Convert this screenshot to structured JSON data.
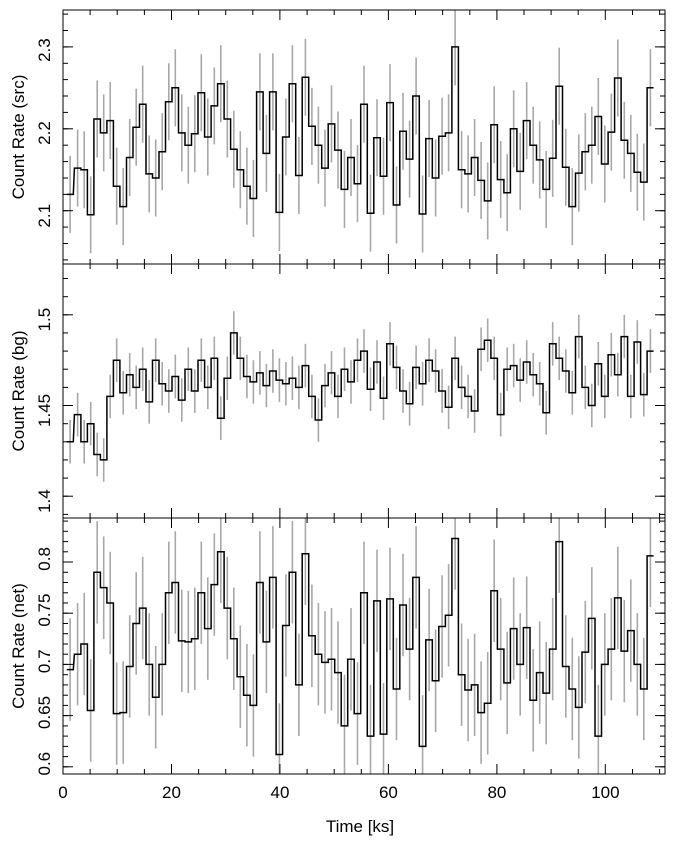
{
  "chart_data": [
    {
      "type": "line",
      "style": "step",
      "ylabel": "Count Rate (src)",
      "ylim": [
        2.035,
        2.345
      ],
      "ytick_labels": [
        "2.1",
        "2.2",
        "2.3"
      ],
      "xlim": [
        0,
        111
      ],
      "x": [
        1.3,
        2.7,
        3.9,
        5.1,
        6.3,
        7.5,
        8.7,
        9.9,
        11.1,
        12.3,
        13.5,
        14.7,
        15.9,
        17.1,
        18.3,
        19.5,
        20.7,
        21.9,
        23.1,
        24.3,
        25.5,
        26.7,
        27.9,
        29.1,
        30.3,
        31.5,
        32.7,
        33.9,
        35.1,
        36.3,
        37.5,
        38.7,
        39.9,
        41.1,
        42.3,
        43.5,
        44.7,
        45.9,
        47.1,
        48.3,
        49.5,
        50.7,
        51.9,
        53.1,
        54.3,
        55.5,
        56.7,
        57.9,
        59.1,
        60.3,
        61.5,
        62.7,
        63.9,
        65.1,
        66.3,
        67.5,
        68.7,
        69.9,
        71.1,
        72.3,
        73.5,
        74.7,
        75.9,
        77.1,
        78.3,
        79.5,
        80.7,
        81.9,
        83.1,
        84.3,
        85.5,
        86.7,
        87.9,
        89.1,
        90.3,
        91.5,
        92.7,
        93.9,
        95.1,
        96.3,
        97.5,
        98.7,
        99.9,
        101.1,
        102.3,
        103.5,
        104.7,
        105.9,
        107.1,
        108.3
      ],
      "y": [
        2.12,
        2.152,
        2.15,
        2.095,
        2.212,
        2.195,
        2.21,
        2.13,
        2.105,
        2.165,
        2.202,
        2.23,
        2.145,
        2.14,
        2.172,
        2.233,
        2.25,
        2.195,
        2.18,
        2.194,
        2.244,
        2.19,
        2.228,
        2.255,
        2.212,
        2.175,
        2.15,
        2.13,
        2.115,
        2.245,
        2.17,
        2.245,
        2.098,
        2.19,
        2.255,
        2.143,
        2.263,
        2.203,
        2.18,
        2.152,
        2.206,
        2.174,
        2.126,
        2.165,
        2.133,
        2.23,
        2.097,
        2.189,
        2.142,
        2.232,
        2.107,
        2.197,
        2.163,
        2.24,
        2.096,
        2.188,
        2.14,
        2.191,
        2.195,
        2.3,
        2.15,
        2.145,
        2.165,
        2.137,
        2.112,
        2.205,
        2.138,
        2.122,
        2.2,
        2.148,
        2.21,
        2.18,
        2.162,
        2.126,
        2.164,
        2.252,
        2.153,
        2.105,
        2.146,
        2.172,
        2.18,
        2.215,
        2.157,
        2.196,
        2.262,
        2.186,
        2.17,
        2.147,
        2.135,
        2.25
      ],
      "err": [
        0.047,
        0.047,
        0.047,
        0.047,
        0.047,
        0.047,
        0.047,
        0.047,
        0.047,
        0.047,
        0.047,
        0.047,
        0.047,
        0.047,
        0.047,
        0.047,
        0.047,
        0.047,
        0.047,
        0.047,
        0.047,
        0.047,
        0.047,
        0.047,
        0.047,
        0.047,
        0.047,
        0.047,
        0.047,
        0.047,
        0.047,
        0.047,
        0.047,
        0.047,
        0.047,
        0.047,
        0.047,
        0.047,
        0.047,
        0.047,
        0.047,
        0.047,
        0.047,
        0.047,
        0.047,
        0.047,
        0.047,
        0.047,
        0.047,
        0.047,
        0.047,
        0.047,
        0.047,
        0.047,
        0.047,
        0.047,
        0.047,
        0.047,
        0.047,
        0.047,
        0.047,
        0.047,
        0.047,
        0.047,
        0.047,
        0.047,
        0.047,
        0.047,
        0.047,
        0.047,
        0.047,
        0.047,
        0.047,
        0.047,
        0.047,
        0.047,
        0.047,
        0.047,
        0.047,
        0.047,
        0.047,
        0.047,
        0.047,
        0.047,
        0.047,
        0.047,
        0.047,
        0.047,
        0.047,
        0.047
      ]
    },
    {
      "type": "line",
      "style": "step",
      "ylabel": "Count Rate (bg)",
      "ylim": [
        1.388,
        1.528
      ],
      "ytick_labels": [
        "1.4",
        "1.45",
        "1.5"
      ],
      "xlim": [
        0,
        111
      ],
      "x": [
        1.3,
        2.7,
        3.9,
        5.1,
        6.3,
        7.5,
        8.7,
        9.9,
        11.1,
        12.3,
        13.5,
        14.7,
        15.9,
        17.1,
        18.3,
        19.5,
        20.7,
        21.9,
        23.1,
        24.3,
        25.5,
        26.7,
        27.9,
        29.1,
        30.3,
        31.5,
        32.7,
        33.9,
        35.1,
        36.3,
        37.5,
        38.7,
        39.9,
        41.1,
        42.3,
        43.5,
        44.7,
        45.9,
        47.1,
        48.3,
        49.5,
        50.7,
        51.9,
        53.1,
        54.3,
        55.5,
        56.7,
        57.9,
        59.1,
        60.3,
        61.5,
        62.7,
        63.9,
        65.1,
        66.3,
        67.5,
        68.7,
        69.9,
        71.1,
        72.3,
        73.5,
        74.7,
        75.9,
        77.1,
        78.3,
        79.5,
        80.7,
        81.9,
        83.1,
        84.3,
        85.5,
        86.7,
        87.9,
        89.1,
        90.3,
        91.5,
        92.7,
        93.9,
        95.1,
        96.3,
        97.5,
        98.7,
        99.9,
        101.1,
        102.3,
        103.5,
        104.7,
        105.9,
        107.1,
        108.3
      ],
      "y": [
        1.43,
        1.445,
        1.43,
        1.44,
        1.423,
        1.42,
        1.455,
        1.475,
        1.457,
        1.467,
        1.46,
        1.47,
        1.452,
        1.475,
        1.462,
        1.458,
        1.466,
        1.453,
        1.47,
        1.458,
        1.475,
        1.46,
        1.476,
        1.443,
        1.465,
        1.49,
        1.476,
        1.466,
        1.463,
        1.468,
        1.461,
        1.469,
        1.464,
        1.462,
        1.465,
        1.46,
        1.472,
        1.455,
        1.442,
        1.461,
        1.468,
        1.455,
        1.47,
        1.463,
        1.475,
        1.48,
        1.459,
        1.474,
        1.454,
        1.484,
        1.471,
        1.458,
        1.451,
        1.471,
        1.462,
        1.475,
        1.469,
        1.458,
        1.449,
        1.476,
        1.46,
        1.455,
        1.447,
        1.481,
        1.486,
        1.476,
        1.445,
        1.47,
        1.472,
        1.464,
        1.474,
        1.467,
        1.462,
        1.446,
        1.484,
        1.476,
        1.469,
        1.457,
        1.488,
        1.46,
        1.45,
        1.473,
        1.455,
        1.478,
        1.467,
        1.488,
        1.455,
        1.485,
        1.456,
        1.48
      ],
      "err": [
        0.012,
        0.012,
        0.012,
        0.012,
        0.012,
        0.012,
        0.012,
        0.012,
        0.012,
        0.012,
        0.012,
        0.012,
        0.012,
        0.012,
        0.012,
        0.012,
        0.012,
        0.012,
        0.012,
        0.012,
        0.012,
        0.012,
        0.012,
        0.012,
        0.012,
        0.012,
        0.012,
        0.012,
        0.012,
        0.012,
        0.012,
        0.012,
        0.012,
        0.012,
        0.012,
        0.012,
        0.012,
        0.012,
        0.012,
        0.012,
        0.012,
        0.012,
        0.012,
        0.012,
        0.012,
        0.012,
        0.012,
        0.012,
        0.012,
        0.012,
        0.012,
        0.012,
        0.012,
        0.012,
        0.012,
        0.012,
        0.012,
        0.012,
        0.012,
        0.012,
        0.012,
        0.012,
        0.012,
        0.012,
        0.012,
        0.012,
        0.012,
        0.012,
        0.012,
        0.012,
        0.012,
        0.012,
        0.012,
        0.012,
        0.012,
        0.012,
        0.012,
        0.012,
        0.012,
        0.012,
        0.012,
        0.012,
        0.012,
        0.012,
        0.012,
        0.012,
        0.012,
        0.012,
        0.012,
        0.012
      ]
    },
    {
      "type": "line",
      "style": "step",
      "ylabel": "Count Rate (net)",
      "ylim": [
        0.593,
        0.843
      ],
      "ytick_labels": [
        "0.6",
        "0.65",
        "0.7",
        "0.75",
        "0.8"
      ],
      "xlim": [
        0,
        111
      ],
      "xlabel": "Time [ks]",
      "xtick_labels": [
        "0",
        "20",
        "40",
        "60",
        "80",
        "100"
      ],
      "x": [
        1.3,
        2.7,
        3.9,
        5.1,
        6.3,
        7.5,
        8.7,
        9.9,
        11.1,
        12.3,
        13.5,
        14.7,
        15.9,
        17.1,
        18.3,
        19.5,
        20.7,
        21.9,
        23.1,
        24.3,
        25.5,
        26.7,
        27.9,
        29.1,
        30.3,
        31.5,
        32.7,
        33.9,
        35.1,
        36.3,
        37.5,
        38.7,
        39.9,
        41.1,
        42.3,
        43.5,
        44.7,
        45.9,
        47.1,
        48.3,
        49.5,
        50.7,
        51.9,
        53.1,
        54.3,
        55.5,
        56.7,
        57.9,
        59.1,
        60.3,
        61.5,
        62.7,
        63.9,
        65.1,
        66.3,
        67.5,
        68.7,
        69.9,
        71.1,
        72.3,
        73.5,
        74.7,
        75.9,
        77.1,
        78.3,
        79.5,
        80.7,
        81.9,
        83.1,
        84.3,
        85.5,
        86.7,
        87.9,
        89.1,
        90.3,
        91.5,
        92.7,
        93.9,
        95.1,
        96.3,
        97.5,
        98.7,
        99.9,
        101.1,
        102.3,
        103.5,
        104.7,
        105.9,
        107.1,
        108.3
      ],
      "y": [
        0.695,
        0.71,
        0.72,
        0.655,
        0.79,
        0.775,
        0.76,
        0.652,
        0.653,
        0.698,
        0.74,
        0.755,
        0.7,
        0.668,
        0.7,
        0.77,
        0.78,
        0.723,
        0.722,
        0.725,
        0.77,
        0.735,
        0.778,
        0.81,
        0.755,
        0.725,
        0.688,
        0.67,
        0.66,
        0.78,
        0.722,
        0.785,
        0.612,
        0.738,
        0.79,
        0.68,
        0.808,
        0.728,
        0.71,
        0.702,
        0.705,
        0.692,
        0.64,
        0.705,
        0.652,
        0.77,
        0.63,
        0.762,
        0.632,
        0.764,
        0.676,
        0.758,
        0.715,
        0.785,
        0.62,
        0.724,
        0.684,
        0.737,
        0.748,
        0.823,
        0.69,
        0.675,
        0.68,
        0.653,
        0.662,
        0.772,
        0.715,
        0.682,
        0.735,
        0.7,
        0.736,
        0.665,
        0.692,
        0.672,
        0.715,
        0.82,
        0.698,
        0.676,
        0.658,
        0.712,
        0.745,
        0.63,
        0.7,
        0.715,
        0.765,
        0.713,
        0.733,
        0.7,
        0.676,
        0.806
      ],
      "err": [
        0.05,
        0.05,
        0.05,
        0.05,
        0.05,
        0.05,
        0.05,
        0.05,
        0.05,
        0.05,
        0.05,
        0.05,
        0.05,
        0.05,
        0.05,
        0.05,
        0.05,
        0.05,
        0.05,
        0.05,
        0.05,
        0.05,
        0.05,
        0.05,
        0.05,
        0.05,
        0.05,
        0.05,
        0.05,
        0.05,
        0.05,
        0.05,
        0.05,
        0.05,
        0.05,
        0.05,
        0.05,
        0.05,
        0.05,
        0.05,
        0.05,
        0.05,
        0.05,
        0.05,
        0.05,
        0.05,
        0.05,
        0.05,
        0.05,
        0.05,
        0.05,
        0.05,
        0.05,
        0.05,
        0.05,
        0.05,
        0.05,
        0.05,
        0.05,
        0.05,
        0.05,
        0.05,
        0.05,
        0.05,
        0.05,
        0.05,
        0.05,
        0.05,
        0.05,
        0.05,
        0.05,
        0.05,
        0.05,
        0.05,
        0.05,
        0.05,
        0.05,
        0.05,
        0.05,
        0.05,
        0.05,
        0.05,
        0.05,
        0.05,
        0.05,
        0.05,
        0.05,
        0.05,
        0.05,
        0.05
      ]
    }
  ],
  "colors": {
    "line": "#000000",
    "errorbar": "#a8a8a8",
    "background": "#ffffff"
  }
}
